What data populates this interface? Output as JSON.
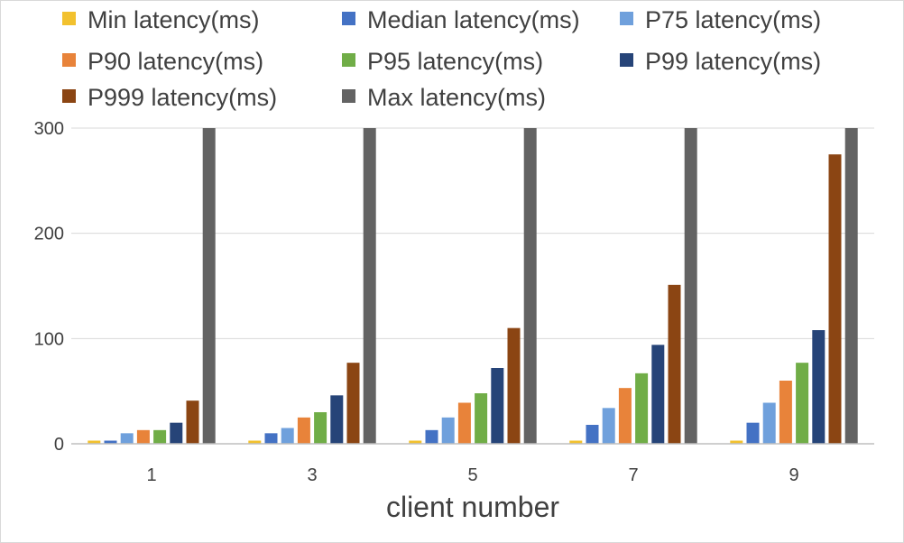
{
  "chart_data": {
    "type": "bar",
    "title": "",
    "xlabel": "client number",
    "ylabel": "",
    "categories": [
      "1",
      "3",
      "5",
      "7",
      "9"
    ],
    "ylim": [
      0,
      300
    ],
    "yticks": [
      0,
      100,
      200,
      300
    ],
    "grid": true,
    "legend_position": "top",
    "series": [
      {
        "name": "Min latency(ms)",
        "color": "#F2C12E",
        "values": [
          3,
          3,
          3,
          3,
          3
        ]
      },
      {
        "name": "Median latency(ms)",
        "color": "#4472C4",
        "values": [
          3,
          10,
          13,
          18,
          20
        ]
      },
      {
        "name": "P75 latency(ms)",
        "color": "#6FA0DC",
        "values": [
          10,
          15,
          25,
          34,
          39
        ]
      },
      {
        "name": "P90 latency(ms)",
        "color": "#E8833A",
        "values": [
          13,
          25,
          39,
          53,
          60
        ]
      },
      {
        "name": "P95 latency(ms)",
        "color": "#70AD47",
        "values": [
          13,
          30,
          48,
          67,
          77
        ]
      },
      {
        "name": "P99 latency(ms)",
        "color": "#264478",
        "values": [
          20,
          46,
          72,
          94,
          108
        ]
      },
      {
        "name": "P999 latency(ms)",
        "color": "#8B4513",
        "values": [
          41,
          77,
          110,
          151,
          275
        ]
      },
      {
        "name": "Max latency(ms)",
        "color": "#636363",
        "values": [
          300,
          300,
          300,
          300,
          300
        ]
      }
    ]
  }
}
